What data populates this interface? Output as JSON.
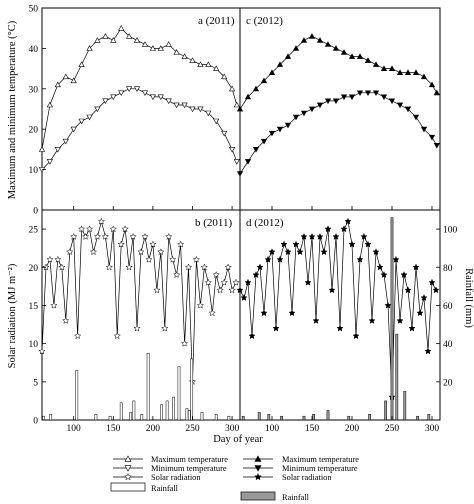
{
  "figure": {
    "xlabel": "Day of year",
    "ylabel_top": "Maximum and minimum temperature (°C)",
    "ylabel_bottom": "Solar radiation (MJ m⁻²)",
    "ylabel_right": "Rainfall (mm)"
  },
  "chart_data": [
    {
      "type": "line",
      "title": "a (2011)",
      "xlabel": "Day of year",
      "ylabel": "Maximum and minimum temperature (°C)",
      "xlim": [
        60,
        310
      ],
      "ylim": [
        0,
        50
      ],
      "xticks": [
        100,
        150,
        200,
        250,
        300
      ],
      "yticks": [
        0,
        10,
        20,
        30,
        40,
        50
      ],
      "x": [
        60,
        70,
        80,
        90,
        100,
        110,
        120,
        130,
        140,
        150,
        160,
        170,
        180,
        190,
        200,
        210,
        220,
        230,
        240,
        250,
        260,
        270,
        280,
        290,
        300,
        306
      ],
      "series": [
        {
          "name": "Maximum temperature",
          "marker": "open-triangle-up",
          "values": [
            15,
            26,
            31,
            33,
            32,
            36,
            40,
            42,
            43,
            42,
            45,
            43,
            42,
            41,
            40,
            40,
            41,
            39,
            38,
            37,
            36,
            36,
            35,
            33,
            30,
            26
          ]
        },
        {
          "name": "Minimum temperature",
          "marker": "open-triangle-down",
          "values": [
            10,
            12,
            15,
            17,
            20,
            22,
            23,
            25,
            27,
            28,
            29,
            30,
            30,
            29,
            28,
            28,
            27,
            26,
            26,
            25,
            25,
            24,
            22,
            19,
            15,
            12
          ]
        }
      ]
    },
    {
      "type": "line",
      "title": "c (2012)",
      "xlabel": "Day of year",
      "xlim": [
        60,
        310
      ],
      "ylim": [
        0,
        50
      ],
      "xticks": [
        100,
        150,
        200,
        250,
        300
      ],
      "x": [
        60,
        70,
        80,
        90,
        100,
        110,
        120,
        130,
        140,
        150,
        160,
        170,
        180,
        190,
        200,
        210,
        220,
        230,
        240,
        250,
        260,
        270,
        280,
        290,
        300,
        306
      ],
      "series": [
        {
          "name": "Maximum temperature",
          "marker": "filled-triangle-up",
          "values": [
            25,
            28,
            30,
            32,
            34,
            36,
            38,
            40,
            42,
            43,
            42,
            41,
            40,
            39,
            38,
            38,
            37,
            36,
            35,
            35,
            34,
            34,
            34,
            33,
            31,
            29
          ]
        },
        {
          "name": "Minimum temperature",
          "marker": "filled-triangle-down",
          "values": [
            9,
            12,
            15,
            17,
            19,
            20,
            21,
            23,
            24,
            25,
            26,
            27,
            27,
            28,
            28,
            29,
            29,
            29,
            28,
            27,
            26,
            25,
            23,
            20,
            18,
            16
          ]
        }
      ]
    },
    {
      "type": "line",
      "title": "b (2011)",
      "xlabel": "Day of year",
      "ylabel": "Solar radiation (MJ m⁻²)",
      "xlim": [
        60,
        310
      ],
      "ylim": [
        0,
        27.5
      ],
      "xticks": [
        100,
        150,
        200,
        250,
        300
      ],
      "yticks": [
        0,
        5,
        10,
        15,
        20,
        25
      ],
      "x": [
        60,
        65,
        70,
        75,
        80,
        85,
        90,
        95,
        100,
        105,
        110,
        115,
        120,
        125,
        130,
        135,
        140,
        145,
        150,
        155,
        160,
        165,
        170,
        175,
        180,
        185,
        190,
        195,
        200,
        205,
        210,
        215,
        220,
        225,
        230,
        235,
        240,
        245,
        250,
        255,
        260,
        265,
        270,
        275,
        280,
        285,
        290,
        295,
        300,
        305
      ],
      "series": [
        {
          "name": "Solar radiation",
          "marker": "open-star",
          "values": [
            9,
            20,
            21,
            15,
            21,
            20,
            13,
            22,
            24,
            11,
            25,
            24,
            25,
            22,
            24,
            26,
            24,
            20,
            25,
            11,
            23,
            25,
            20,
            24,
            12,
            22,
            24,
            21,
            23,
            17,
            22,
            12,
            24,
            21,
            19,
            23,
            10,
            20,
            5,
            21,
            15,
            20,
            18,
            14,
            19,
            17,
            18,
            20,
            17,
            18
          ]
        },
        {
          "name": "Rainfall",
          "type": "bar",
          "axis": "right",
          "ylim": [
            0,
            110
          ],
          "x": [
            62,
            71,
            104,
            128,
            146,
            160,
            172,
            176,
            186,
            194,
            211,
            218,
            226,
            233,
            243,
            246,
            249,
            262,
            280,
            296
          ],
          "values": [
            2,
            3,
            26,
            3,
            2,
            9,
            4,
            10,
            3,
            35,
            8,
            10,
            12,
            28,
            6,
            5,
            32,
            4,
            3,
            2
          ]
        }
      ]
    },
    {
      "type": "line",
      "title": "d (2012)",
      "xlabel": "Day of year",
      "ylabel": "Rainfall (mm)",
      "xlim": [
        60,
        310
      ],
      "xticks": [
        100,
        150,
        200,
        250,
        300
      ],
      "y2ticks": [
        0,
        20,
        40,
        60,
        80,
        100
      ],
      "x": [
        60,
        65,
        70,
        75,
        80,
        85,
        90,
        95,
        100,
        105,
        110,
        115,
        120,
        125,
        130,
        135,
        140,
        145,
        150,
        155,
        160,
        165,
        170,
        175,
        180,
        185,
        190,
        195,
        200,
        205,
        210,
        215,
        220,
        225,
        230,
        235,
        240,
        245,
        250,
        255,
        260,
        265,
        270,
        275,
        280,
        285,
        290,
        295,
        300,
        305
      ],
      "series": [
        {
          "name": "Solar radiation",
          "marker": "filled-star",
          "values": [
            17,
            16,
            18,
            11,
            19,
            20,
            14,
            21,
            22,
            12,
            21,
            23,
            22,
            14,
            23,
            22,
            24,
            18,
            24,
            13,
            24,
            22,
            25,
            17,
            24,
            12,
            25,
            26,
            23,
            11,
            21,
            24,
            23,
            13,
            22,
            20,
            19,
            15,
            3,
            21,
            13,
            19,
            17,
            12,
            20,
            14,
            16,
            9,
            18,
            17
          ]
        },
        {
          "name": "Rainfall",
          "type": "bar",
          "axis": "right",
          "ylim": [
            0,
            110
          ],
          "x": [
            64,
            84,
            96,
            112,
            140,
            152,
            170,
            196,
            222,
            242,
            250,
            256,
            266,
            282,
            296
          ],
          "values": [
            2,
            4,
            3,
            2,
            2,
            3,
            5,
            2,
            3,
            10,
            106,
            45,
            15,
            2,
            3
          ]
        }
      ]
    }
  ],
  "legend": {
    "col1": [
      {
        "label": "Maximum temperature",
        "marker": "open-triangle-up"
      },
      {
        "label": "Minimum temperature",
        "marker": "open-triangle-down"
      },
      {
        "label": "Solar radiation",
        "marker": "open-star"
      },
      {
        "label": "Rainfall",
        "marker": "open-bar"
      }
    ],
    "col2": [
      {
        "label": "Maximum temperature",
        "marker": "filled-triangle-up"
      },
      {
        "label": "Minimum temperature",
        "marker": "filled-triangle-down"
      },
      {
        "label": "Solar radiation",
        "marker": "filled-star"
      },
      {
        "label": "Rainfall",
        "marker": "gray-bar"
      }
    ]
  },
  "colors": {
    "ink": "#000000",
    "open_fill": "#ffffff",
    "rain_2012": "#9a9a9a",
    "background": "#ffffff"
  }
}
